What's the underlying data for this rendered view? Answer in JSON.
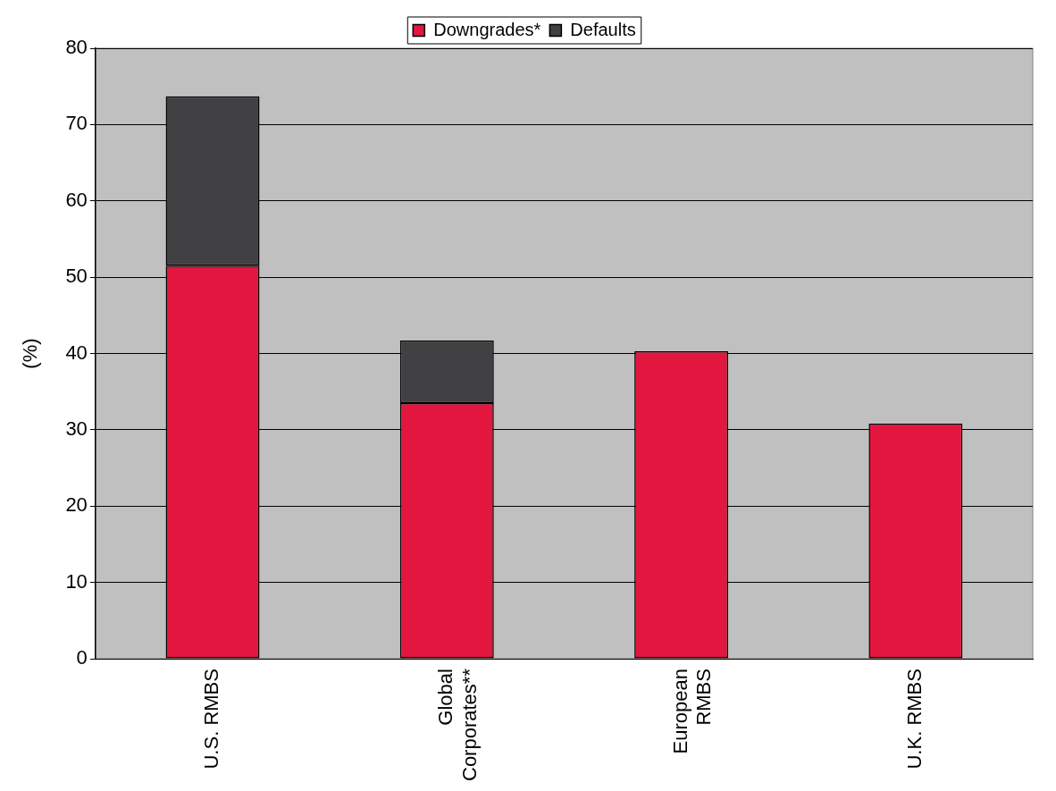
{
  "chart_data": {
    "type": "bar",
    "stacked": true,
    "ylabel": "(%)",
    "categories": [
      "U.S. RMBS",
      "Global\nCorporates**",
      "European\nRMBS",
      "U.K. RMBS"
    ],
    "series": [
      {
        "name": "Downgrades*",
        "color": "#e2163f",
        "values": [
          51.5,
          33.5,
          40.3,
          30.8
        ]
      },
      {
        "name": "Defaults",
        "color": "#414143",
        "values": [
          22.2,
          8.2,
          0,
          0
        ]
      }
    ],
    "ylim": [
      0,
      80
    ],
    "yticks": [
      0,
      10,
      20,
      30,
      40,
      50,
      60,
      70,
      80
    ],
    "grid": "y",
    "legend": "top"
  }
}
